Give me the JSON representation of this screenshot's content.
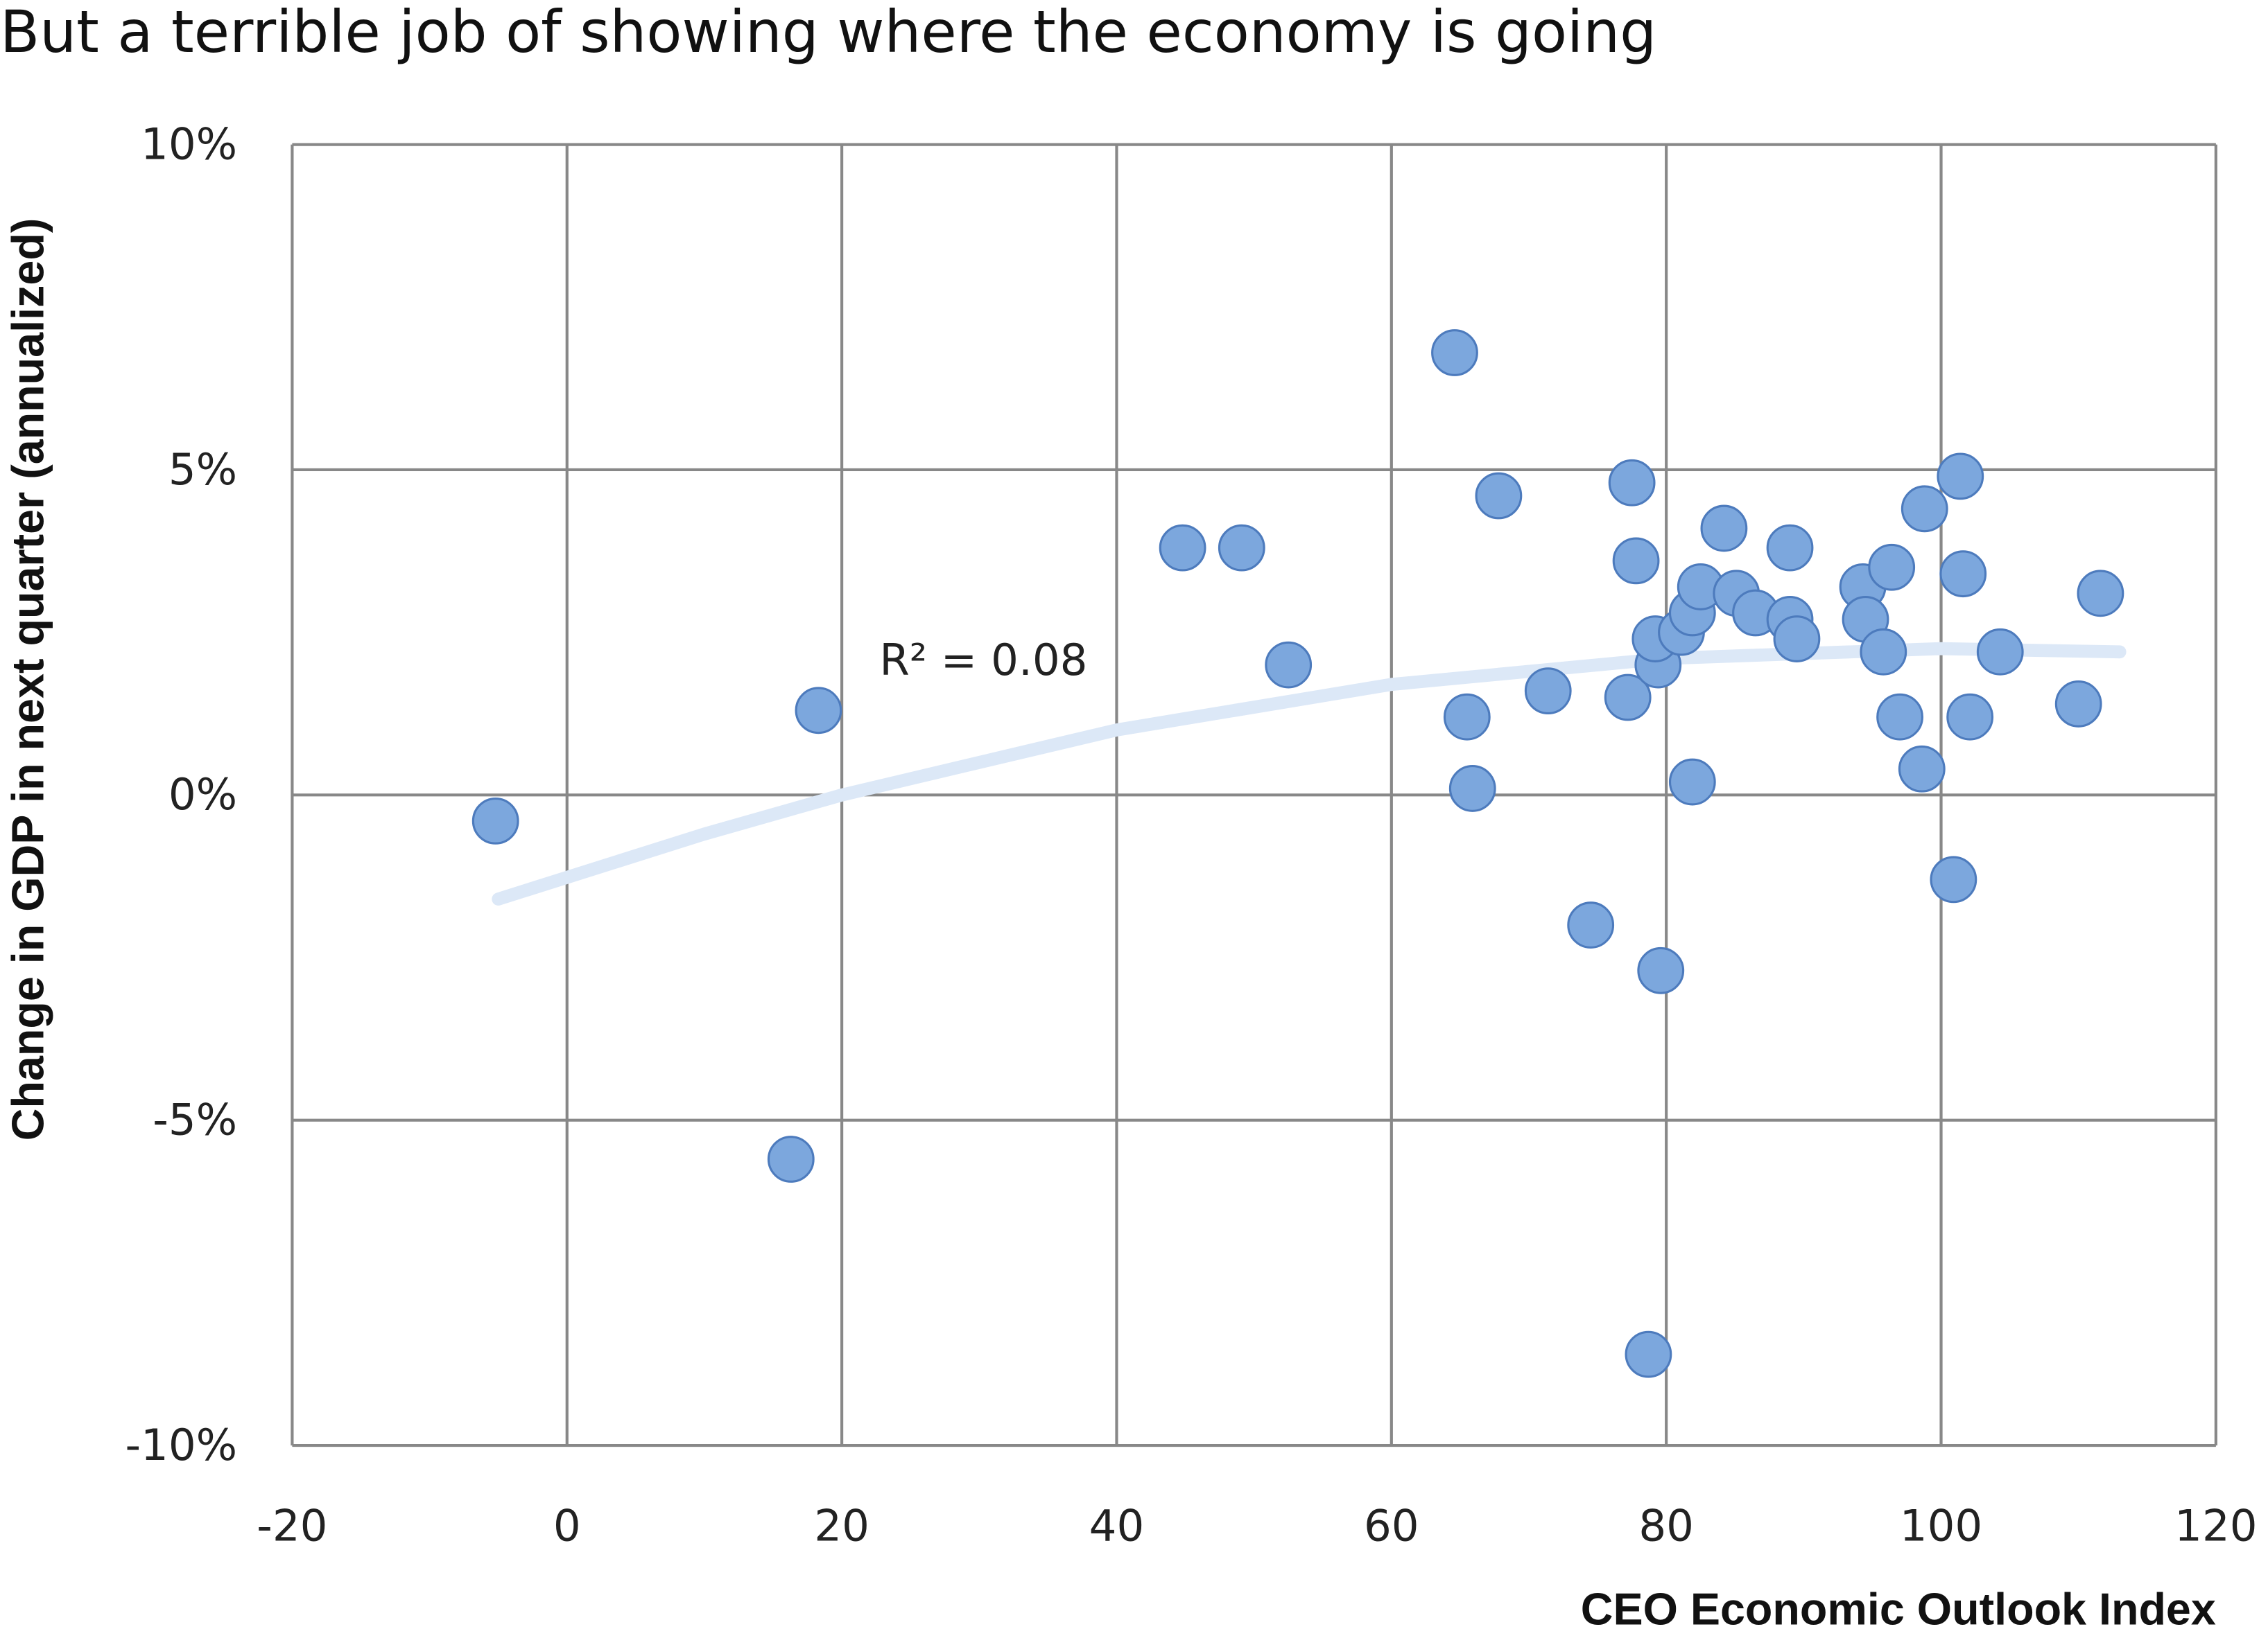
{
  "chart_data": {
    "type": "scatter",
    "title": "But a terrible job of showing where the economy is going",
    "x_label": "CEO Economic Outlook Index",
    "y_label": "Change in GDP in next quarter (annualized)",
    "annotation": "R² = 0.08",
    "xlim": [
      -20,
      120
    ],
    "xticks": [
      -20,
      0,
      20,
      40,
      60,
      80,
      100,
      120
    ],
    "ylim": [
      -10,
      10
    ],
    "yticks": [
      {
        "value": -10,
        "label": "-10%"
      },
      {
        "value": -5,
        "label": "-5%"
      },
      {
        "value": 0,
        "label": "0%"
      },
      {
        "value": 5,
        "label": "5%"
      },
      {
        "value": 10,
        "label": "10%"
      }
    ],
    "grid": true,
    "color": "#7ca7dd",
    "x": [
      -5.2,
      18.3,
      16.3,
      44.8,
      49.1,
      52.5,
      64.6,
      67.8,
      65.5,
      65.9,
      71.4,
      74.5,
      77.5,
      77.8,
      77.2,
      79.6,
      78.7,
      79.4,
      79.2,
      81.1,
      81.9,
      82.5,
      81.9,
      84.2,
      85.1,
      86.5,
      89.0,
      89.0,
      89.5,
      94.3,
      94.5,
      95.8,
      96.4,
      97.0,
      98.6,
      98.8,
      101.4,
      101.6,
      100.9,
      102.1,
      104.3,
      110.0,
      111.6
    ],
    "values": [
      -0.4,
      1.3,
      -5.6,
      3.8,
      3.8,
      2.0,
      6.8,
      4.6,
      1.2,
      0.1,
      1.6,
      -2.0,
      4.8,
      3.6,
      1.5,
      -2.7,
      -8.6,
      2.0,
      2.4,
      2.5,
      2.8,
      3.2,
      0.2,
      4.1,
      3.1,
      2.8,
      3.8,
      2.7,
      2.4,
      3.2,
      2.7,
      2.2,
      3.5,
      1.2,
      0.4,
      4.4,
      4.9,
      3.4,
      -1.3,
      1.2,
      2.2,
      1.4,
      3.1
    ],
    "trendline": {
      "color": "#dce8f7",
      "x": [
        -5,
        10,
        20,
        40,
        60,
        80,
        100,
        113
      ],
      "values": [
        -1.6,
        -0.6,
        0,
        1.0,
        1.7,
        2.1,
        2.25,
        2.2
      ]
    }
  }
}
